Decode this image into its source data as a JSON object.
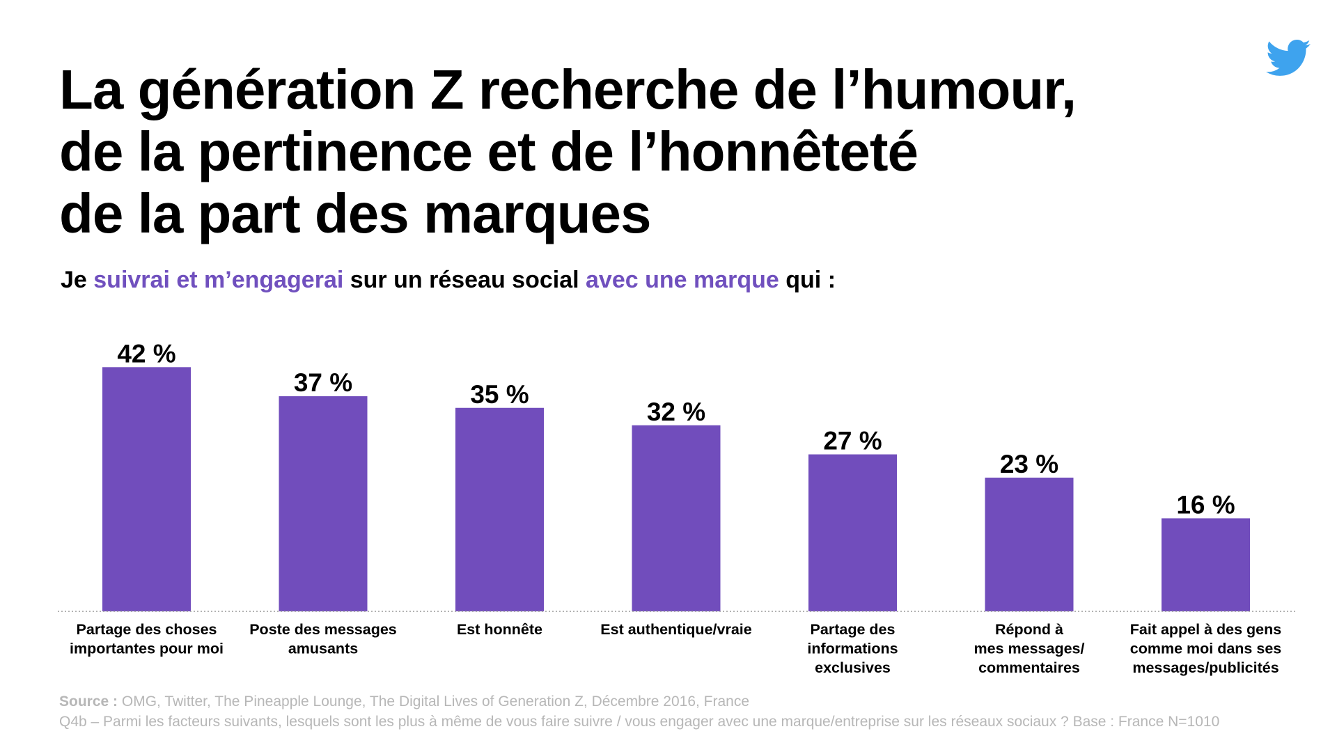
{
  "title_lines": [
    "La génération Z recherche de l’humour,",
    "de la pertinence et de l’honnêteté",
    "de la part des marques"
  ],
  "subtitle": {
    "part1": "Je ",
    "highlight1": "suivrai et m’engagerai",
    "part2": " sur un réseau social ",
    "highlight2": "avec une marque",
    "part3": " qui :"
  },
  "logo_icon": "twitter-bird-icon",
  "colors": {
    "bar": "#714dbc",
    "highlight": "#7050be",
    "logo": "#3ea3ee",
    "source": "#b7b7b7"
  },
  "chart_data": {
    "type": "bar",
    "categories": [
      [
        "Partage des choses",
        "importantes pour moi"
      ],
      [
        "Poste des messages",
        "amusants"
      ],
      [
        "Est honnête"
      ],
      [
        "Est authentique/vraie"
      ],
      [
        "Partage des",
        "informations",
        "exclusives"
      ],
      [
        "Répond à",
        "mes messages/",
        "commentaires"
      ],
      [
        "Fait appel à des gens",
        "comme moi dans ses",
        "messages/publicités"
      ]
    ],
    "values": [
      42,
      37,
      35,
      32,
      27,
      23,
      16
    ],
    "value_labels": [
      "42 %",
      "37 %",
      "35 %",
      "32 %",
      "27 %",
      "23 %",
      "16 %"
    ],
    "unit": "%",
    "ylim": [
      0,
      42
    ],
    "grid": false,
    "legend": "none"
  },
  "source": {
    "label": "Source :",
    "text": " OMG, Twitter, The Pineapple Lounge, The Digital Lives of Generation Z, Décembre 2016, France",
    "question": "Q4b – Parmi les facteurs suivants, lesquels sont les plus à même de vous faire suivre / vous engager avec une marque/entreprise sur les réseaux sociaux ? Base : France N=1010"
  }
}
